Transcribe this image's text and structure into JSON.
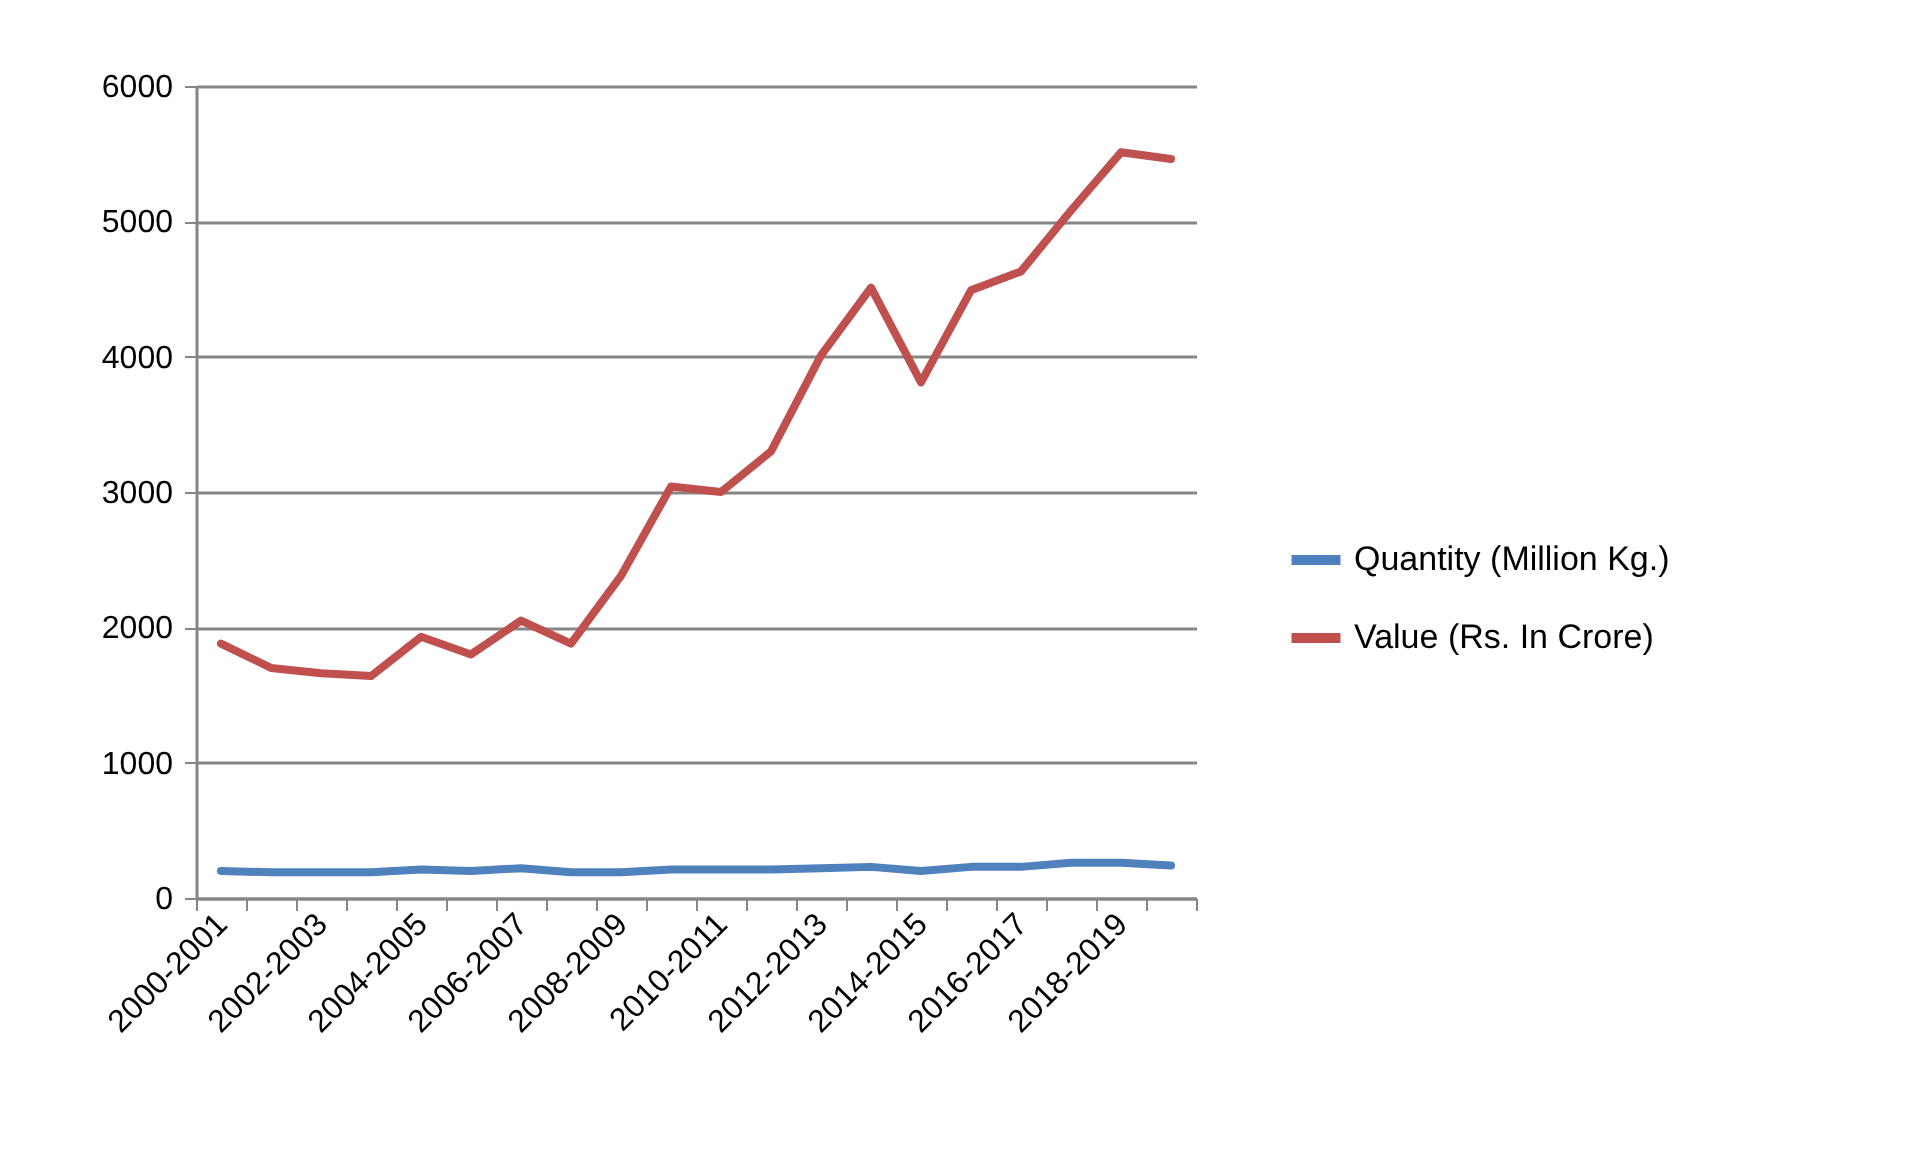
{
  "chart_data": {
    "type": "line",
    "categories": [
      "2000-2001",
      null,
      "2002-2003",
      null,
      "2004-2005",
      null,
      "2006-2007",
      null,
      "2008-2009",
      null,
      "2010-2011",
      null,
      "2012-2013",
      null,
      "2014-2015",
      null,
      "2016-2017",
      null,
      "2018-2019",
      null
    ],
    "series": [
      {
        "name": "Quantity (Million Kg.)",
        "color": "#4f81bd",
        "values": [
          200,
          190,
          190,
          190,
          210,
          200,
          220,
          190,
          190,
          210,
          210,
          210,
          220,
          230,
          200,
          230,
          230,
          260,
          260,
          240
        ]
      },
      {
        "name": "Value (Rs. In Crore)",
        "color": "#c0504d",
        "values": [
          1880,
          1700,
          1660,
          1640,
          1930,
          1800,
          2050,
          1880,
          2380,
          3040,
          3000,
          3300,
          4010,
          4510,
          3810,
          4490,
          4630,
          5080,
          5510,
          5460
        ]
      }
    ],
    "ylim": [
      0,
      6000
    ],
    "yticks": [
      0,
      1000,
      2000,
      3000,
      4000,
      5000,
      6000
    ],
    "grid": "y",
    "legend": "right",
    "marker": "none",
    "line_style": "solid"
  }
}
